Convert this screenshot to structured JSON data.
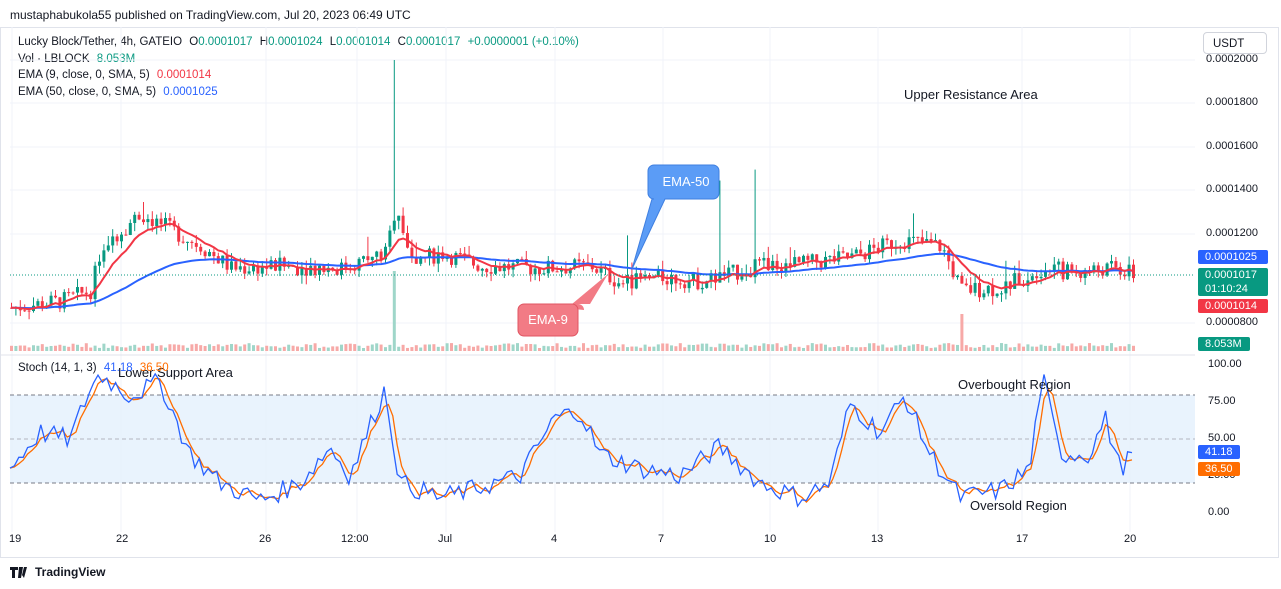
{
  "publisher": "mustaphabukola55 published on TradingView.com, Jul 20, 2023 06:49 UTC",
  "currency": "USDT",
  "legend": {
    "symbol": "Lucky Block/Tether, 4h, GATEIO",
    "o_label": "O",
    "o": "0.0001017",
    "h_label": "H",
    "h": "0.0001024",
    "l_label": "L",
    "l": "0.0001014",
    "c_label": "C",
    "c": "0.0001017",
    "change": "+0.0000001 (+0.10%)",
    "vol_label": "Vol · LBLOCK",
    "vol": "8.053M",
    "ema9_label": "EMA (9, close, 0, SMA, 5)",
    "ema9": "0.0001014",
    "ema50_label": "EMA (50, close, 0, SMA, 5)",
    "ema50": "0.0001025"
  },
  "price_axis": [
    "0.0002000",
    "0.0001800",
    "0.0001600",
    "0.0001400",
    "0.0001200",
    "0.0000800"
  ],
  "price_tags": {
    "ema50": "0.0001025",
    "close": "0.0001017",
    "countdown": "01:10:24",
    "ema9": "0.0001014",
    "volume": "8.053M"
  },
  "stoch": {
    "label": "Stoch (14, 1, 3)",
    "k": "41.18",
    "d": "36.50",
    "axis": [
      "100.00",
      "75.00",
      "50.00",
      "25.00",
      "0.00"
    ],
    "tag_k": "41.18",
    "tag_d": "36.50"
  },
  "time_axis": [
    "19",
    "22",
    "26",
    "12:00",
    "Jul",
    "4",
    "7",
    "10",
    "13",
    "17",
    "20"
  ],
  "annotations": {
    "upper_resistance": "Upper Resistance Area",
    "lower_support": "Lower Support Area",
    "overbought": "Overbought Region",
    "oversold": "Oversold Region",
    "ema50_callout": "EMA-50",
    "ema9_callout": "EMA-9"
  },
  "watermark": "TradingView",
  "colors": {
    "up": "#089981",
    "down": "#f23645",
    "ema9": "#f23645",
    "ema50": "#2962ff",
    "stoch_k": "#2962ff",
    "stoch_d": "#ff6d00",
    "callout_blue": "#5b9cf6",
    "callout_red": "#f27b85"
  },
  "chart_data": {
    "type": "candlestick",
    "candles_approx": [
      {
        "o": 8.5e-05,
        "h": 9e-05,
        "l": 8.3e-05,
        "c": 8.7e-05
      },
      {
        "o": 8.7e-05,
        "h": 9.6e-05,
        "l": 8.5e-05,
        "c": 9.2e-05
      },
      {
        "o": 9e-05,
        "h": 9.2e-05,
        "l": 7.8e-05,
        "c": 8.8e-05
      },
      {
        "o": 8.8e-05,
        "h": 0.00012,
        "l": 8.7e-05,
        "c": 0.000115
      },
      {
        "o": 0.000115,
        "h": 0.00014,
        "l": 0.00011,
        "c": 0.00013
      },
      {
        "o": 0.00013,
        "h": 0.000135,
        "l": 0.000118,
        "c": 0.00012
      },
      {
        "o": 0.00012,
        "h": 0.000125,
        "l": 0.0001,
        "c": 0.000105
      },
      {
        "o": 0.000105,
        "h": 0.000115,
        "l": 0.000102,
        "c": 0.000106
      },
      {
        "o": 0.000106,
        "h": 0.00011,
        "l": 0.000102,
        "c": 0.000104
      },
      {
        "o": 0.000104,
        "h": 0.000112,
        "l": 0.000103,
        "c": 0.000108
      },
      {
        "o": 0.000108,
        "h": 0.0002,
        "l": 0.000105,
        "c": 0.00012
      },
      {
        "o": 0.00012,
        "h": 0.000143,
        "l": 0.00011,
        "c": 0.00011
      },
      {
        "o": 0.00011,
        "h": 0.000118,
        "l": 0.000105,
        "c": 0.000112
      },
      {
        "o": 0.000112,
        "h": 0.000115,
        "l": 0.000106,
        "c": 0.000108
      },
      {
        "o": 0.000108,
        "h": 0.000112,
        "l": 0.000104,
        "c": 0.000106
      },
      {
        "o": 0.000106,
        "h": 0.00011,
        "l": 0.000104,
        "c": 0.000108
      },
      {
        "o": 0.000108,
        "h": 0.000111,
        "l": 0.000104,
        "c": 0.000105
      },
      {
        "o": 0.000105,
        "h": 0.00012,
        "l": 9.8e-05,
        "c": 0.0001
      },
      {
        "o": 0.0001,
        "h": 0.000105,
        "l": 9.6e-05,
        "c": 0.000104
      },
      {
        "o": 0.000104,
        "h": 0.000106,
        "l": 9.8e-05,
        "c": 0.000101
      },
      {
        "o": 0.000101,
        "h": 0.000118,
        "l": 9.9e-05,
        "c": 0.000103
      },
      {
        "o": 0.000103,
        "h": 0.000148,
        "l": 0.0001,
        "c": 0.000106
      },
      {
        "o": 0.000106,
        "h": 0.000108,
        "l": 0.000104,
        "c": 0.000106
      },
      {
        "o": 0.000106,
        "h": 0.00013,
        "l": 0.000104,
        "c": 0.00012
      },
      {
        "o": 0.00012,
        "h": 0.000121,
        "l": 0.000112,
        "c": 0.000112
      },
      {
        "o": 0.000112,
        "h": 0.000115,
        "l": 9.2e-05,
        "c": 9.4e-05
      },
      {
        "o": 9.4e-05,
        "h": 0.000101,
        "l": 9e-05,
        "c": 9.9e-05
      },
      {
        "o": 9.9e-05,
        "h": 0.000103,
        "l": 9.6e-05,
        "c": 0.0001
      },
      {
        "o": 0.0001,
        "h": 0.00012,
        "l": 9.8e-05,
        "c": 0.00011
      },
      {
        "o": 0.00011,
        "h": 0.000113,
        "l": 0.000104,
        "c": 0.000104
      },
      {
        "o": 0.000104,
        "h": 0.000107,
        "l": 0.0001,
        "c": 0.000102
      },
      {
        "o": 0.000102,
        "h": 0.000106,
        "l": 9.9e-05,
        "c": 0.000103
      }
    ]
  }
}
